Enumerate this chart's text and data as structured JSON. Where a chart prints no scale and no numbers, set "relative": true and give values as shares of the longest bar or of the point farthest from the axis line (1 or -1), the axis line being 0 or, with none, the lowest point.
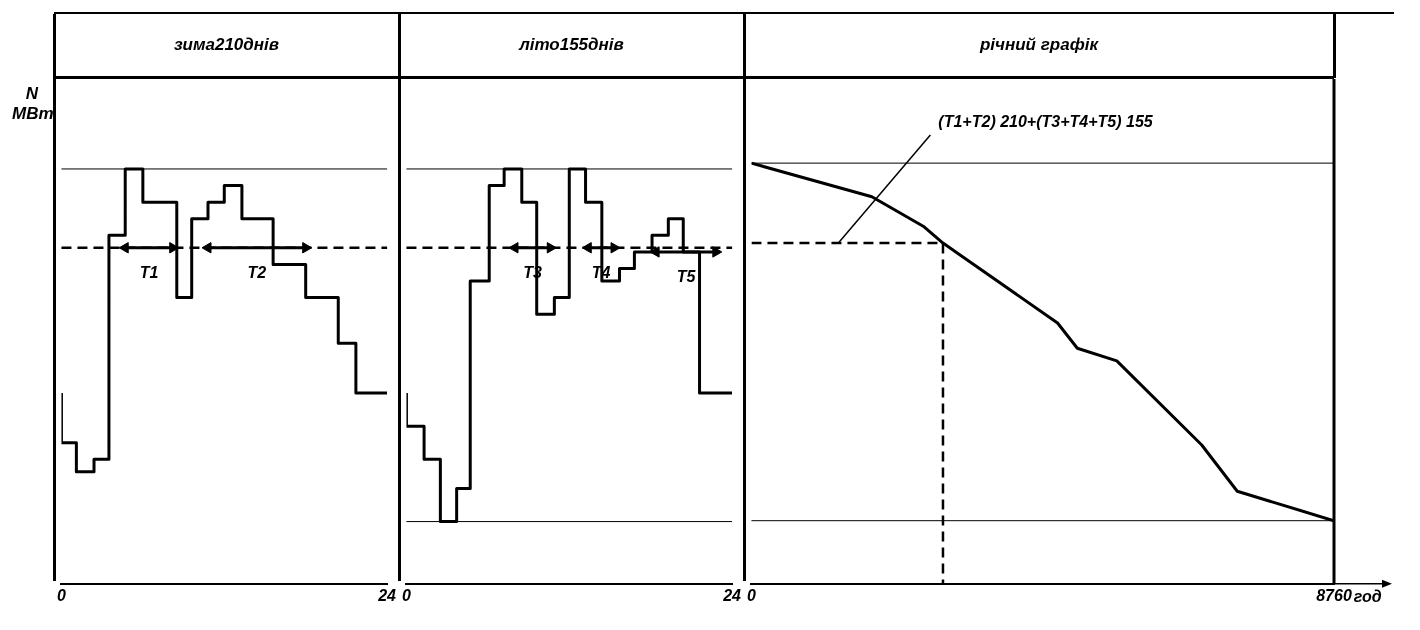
{
  "chart_data": [
    {
      "type": "step",
      "title": "зима210днів",
      "ylabel": "N МВт",
      "relative": true,
      "xlim": [
        0,
        24
      ],
      "xticks": [
        0,
        24
      ],
      "tick_labels": "x",
      "grid": false,
      "legend": false,
      "series": [
        {
          "color": "#000000",
          "x": [
            0,
            1.1,
            2.4,
            3.5,
            4.7,
            6.0,
            8.5,
            9.6,
            10.8,
            12.0,
            13.3,
            15.6,
            18.0,
            20.4,
            21.7,
            22.9,
            24
          ],
          "values": [
            0.46,
            0.34,
            0.27,
            0.3,
            0.84,
            1,
            0.92,
            0.69,
            0.88,
            0.92,
            0.96,
            0.88,
            0.77,
            0.69,
            0.58,
            0.46,
            0.46
          ]
        },
        {
          "name": "T1",
          "color": "#000000",
          "marker": "triangle",
          "x": [
            4.7,
            8.2
          ],
          "values": [
            0.81,
            0.81
          ]
        },
        {
          "name": "T2",
          "color": "#000000",
          "marker": "triangle",
          "x": [
            10.8,
            18.0
          ],
          "values": [
            0.81,
            0.81
          ]
        }
      ],
      "ref_lines": [
        {
          "axis": "y",
          "value": 1,
          "line_style": "solid"
        },
        {
          "axis": "y",
          "value": 0.81,
          "line_style": "dashed"
        }
      ]
    },
    {
      "type": "step",
      "title": "літо155днів",
      "relative": true,
      "xlim": [
        0,
        24
      ],
      "xticks": [
        0,
        24
      ],
      "tick_labels": "x",
      "grid": false,
      "legend": false,
      "series": [
        {
          "color": "#000000",
          "x": [
            0,
            1.3,
            2.5,
            3.7,
            4.7,
            6.1,
            7.2,
            8.5,
            9.6,
            10.9,
            12.0,
            13.2,
            14.4,
            15.7,
            16.8,
            18.1,
            19.3,
            20.4,
            21.6,
            22.8,
            24
          ],
          "values": [
            0.46,
            0.38,
            0.3,
            0.15,
            0.23,
            0.73,
            0.96,
            1,
            0.92,
            0.65,
            0.69,
            1,
            0.92,
            0.73,
            0.76,
            0.8,
            0.84,
            0.88,
            0.8,
            0.46,
            0.46
          ]
        },
        {
          "name": "T3",
          "color": "#000000",
          "marker": "triangle",
          "x": [
            8.0,
            10.6
          ],
          "values": [
            0.81,
            0.81
          ]
        },
        {
          "name": "T4",
          "color": "#000000",
          "marker": "triangle",
          "x": [
            13.4,
            15.3
          ],
          "values": [
            0.81,
            0.81
          ]
        },
        {
          "name": "T5",
          "color": "#000000",
          "marker": "triangle",
          "x": [
            18.4,
            22.8
          ],
          "values": [
            0.8,
            0.8
          ]
        }
      ],
      "ref_lines": [
        {
          "axis": "y",
          "value": 1,
          "line_style": "solid"
        },
        {
          "axis": "y",
          "value": 0.81,
          "line_style": "dashed"
        },
        {
          "axis": "y",
          "value": 0.15,
          "line_style": "solid"
        }
      ]
    },
    {
      "type": "line",
      "title": "річний графік",
      "xlabel": "год",
      "relative": true,
      "xlim": [
        0,
        8760
      ],
      "xticks": [
        0,
        8760
      ],
      "tick_labels": "x",
      "grid": false,
      "legend": false,
      "series": [
        {
          "color": "#000000",
          "x": [
            0,
            1811,
            2583,
            2880,
            4603,
            4900,
            5494,
            6771,
            7305,
            8760
          ],
          "values": [
            1,
            0.92,
            0.85,
            0.81,
            0.62,
            0.56,
            0.53,
            0.33,
            0.22,
            0.15
          ]
        },
        {
          "color": "#000000",
          "line_style": "dashed",
          "x": [
            0,
            2880,
            2880
          ],
          "values": [
            0.81,
            0.81,
            0
          ]
        }
      ],
      "ref_lines": [
        {
          "axis": "y",
          "value": 1,
          "line_style": "solid"
        },
        {
          "axis": "y",
          "value": 0.15,
          "line_style": "solid"
        }
      ],
      "annotations": [
        {
          "text": "(T1+T2) 210+(T3+T4+T5) 155",
          "x": 1307,
          "y": 0.81
        }
      ]
    }
  ]
}
